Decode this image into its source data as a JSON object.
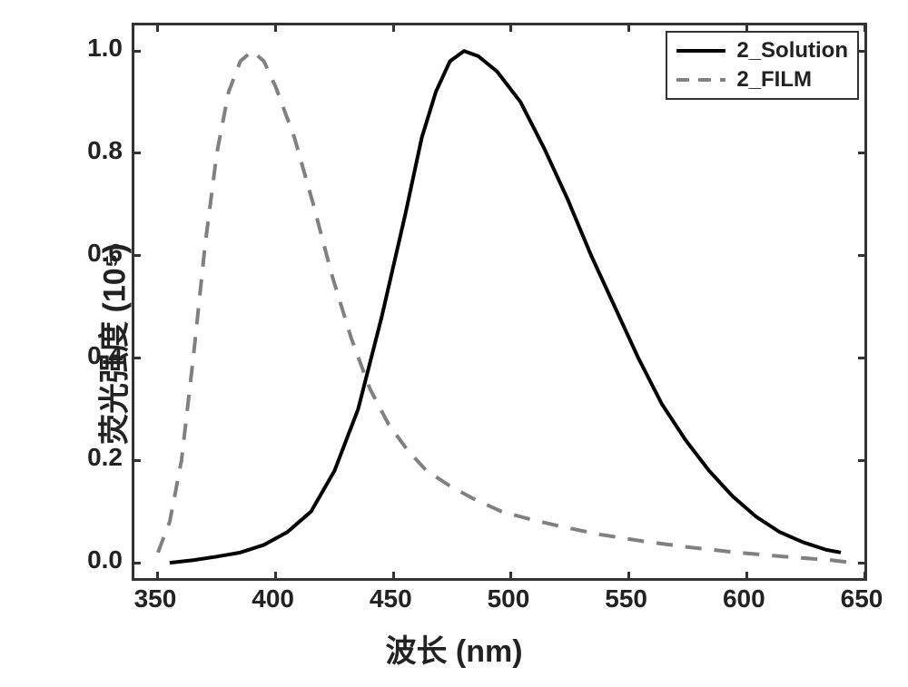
{
  "chart": {
    "type": "line",
    "background_color": "#ffffff",
    "border_color": "#333333",
    "border_width": 3,
    "xaxis": {
      "title": "波长 (nm)",
      "title_fontsize": 34,
      "min": 340,
      "max": 650,
      "ticks": [
        350,
        400,
        450,
        500,
        550,
        600,
        650
      ],
      "tick_fontsize": 28
    },
    "yaxis": {
      "title": "荧光强度 (10⁵)",
      "title_fontsize": 34,
      "min": -0.03,
      "max": 1.05,
      "ticks": [
        0.0,
        0.2,
        0.4,
        0.6,
        0.8,
        1.0
      ],
      "tick_fontsize": 28
    },
    "legend": {
      "position": "top-right",
      "border_color": "#333333",
      "items": [
        {
          "label": "2_Solution",
          "color": "#000000",
          "dash": "solid",
          "width": 4
        },
        {
          "label": "2_FILM",
          "color": "#808080",
          "dash": "dashed",
          "width": 4
        }
      ]
    },
    "series": [
      {
        "name": "2_Solution",
        "color": "#000000",
        "dash": "solid",
        "width": 4,
        "points": [
          [
            355,
            0.0
          ],
          [
            365,
            0.005
          ],
          [
            375,
            0.012
          ],
          [
            385,
            0.02
          ],
          [
            395,
            0.035
          ],
          [
            405,
            0.06
          ],
          [
            415,
            0.1
          ],
          [
            425,
            0.18
          ],
          [
            435,
            0.3
          ],
          [
            445,
            0.48
          ],
          [
            455,
            0.68
          ],
          [
            462,
            0.83
          ],
          [
            468,
            0.92
          ],
          [
            474,
            0.98
          ],
          [
            480,
            1.0
          ],
          [
            486,
            0.99
          ],
          [
            494,
            0.96
          ],
          [
            504,
            0.9
          ],
          [
            514,
            0.81
          ],
          [
            524,
            0.71
          ],
          [
            534,
            0.6
          ],
          [
            544,
            0.5
          ],
          [
            554,
            0.4
          ],
          [
            564,
            0.31
          ],
          [
            574,
            0.24
          ],
          [
            584,
            0.18
          ],
          [
            594,
            0.13
          ],
          [
            604,
            0.09
          ],
          [
            614,
            0.06
          ],
          [
            624,
            0.04
          ],
          [
            634,
            0.025
          ],
          [
            640,
            0.02
          ]
        ]
      },
      {
        "name": "2_FILM",
        "color": "#808080",
        "dash": "dashed",
        "width": 4,
        "points": [
          [
            350,
            0.02
          ],
          [
            355,
            0.08
          ],
          [
            360,
            0.2
          ],
          [
            365,
            0.4
          ],
          [
            370,
            0.62
          ],
          [
            375,
            0.8
          ],
          [
            380,
            0.92
          ],
          [
            385,
            0.98
          ],
          [
            390,
            1.0
          ],
          [
            395,
            0.98
          ],
          [
            400,
            0.93
          ],
          [
            408,
            0.83
          ],
          [
            416,
            0.7
          ],
          [
            424,
            0.56
          ],
          [
            432,
            0.44
          ],
          [
            440,
            0.34
          ],
          [
            448,
            0.27
          ],
          [
            456,
            0.22
          ],
          [
            464,
            0.18
          ],
          [
            474,
            0.15
          ],
          [
            484,
            0.125
          ],
          [
            496,
            0.1
          ],
          [
            508,
            0.085
          ],
          [
            522,
            0.07
          ],
          [
            538,
            0.055
          ],
          [
            556,
            0.042
          ],
          [
            576,
            0.03
          ],
          [
            596,
            0.02
          ],
          [
            616,
            0.012
          ],
          [
            636,
            0.005
          ],
          [
            645,
            0.0
          ]
        ]
      }
    ]
  }
}
